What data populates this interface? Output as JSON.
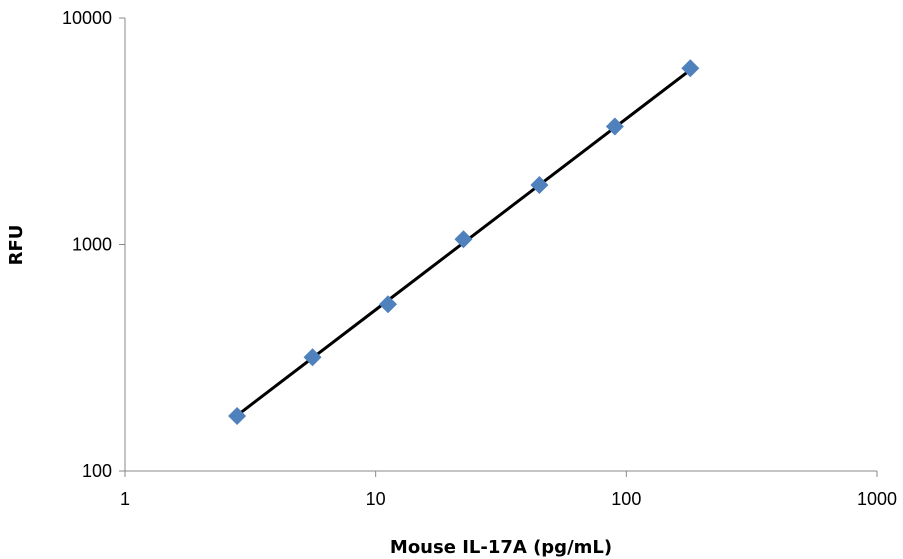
{
  "chart_data": {
    "type": "scatter",
    "title": "",
    "xlabel": "Mouse IL-17A (pg/mL)",
    "ylabel": "RFU",
    "x_scale": "log",
    "y_scale": "log",
    "xlim": [
      1,
      1000
    ],
    "ylim": [
      100,
      10000
    ],
    "x_ticks": [
      "1",
      "10",
      "100",
      "1000"
    ],
    "y_ticks": [
      "10000",
      "1000",
      "100"
    ],
    "grid": false,
    "legend": "none",
    "series": [
      {
        "marker": "diamond",
        "color": "#4F81BD",
        "x": [
          2.8,
          5.6,
          11.2,
          22.4,
          45,
          90,
          180
        ],
        "y": [
          175,
          318,
          545,
          1055,
          1830,
          3320,
          6000
        ]
      }
    ],
    "trendline": {
      "type": "power",
      "color": "#000000",
      "x_range": [
        2.8,
        180
      ],
      "y_range": [
        176,
        5900
      ]
    }
  }
}
